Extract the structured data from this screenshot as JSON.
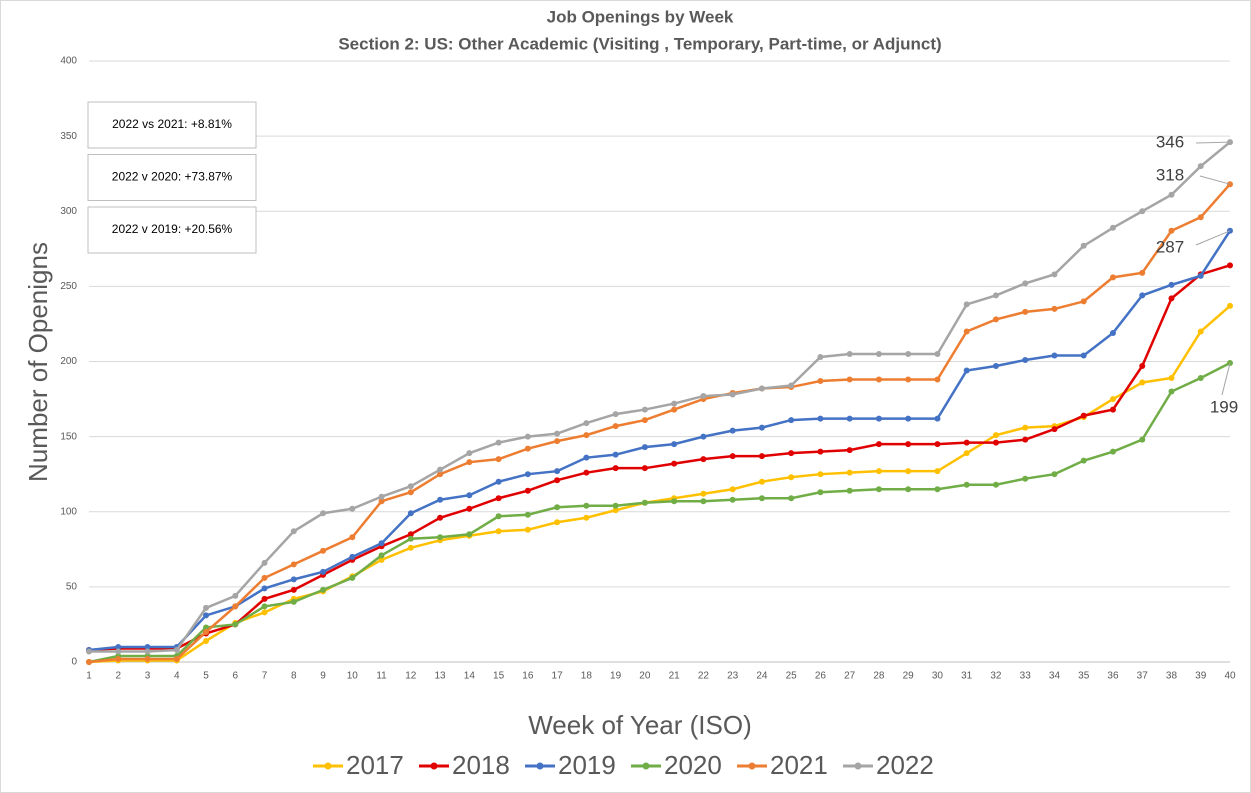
{
  "chart_data": {
    "type": "line",
    "title": "Job Openings by Week",
    "subtitle": "Section 2: US: Other Academic (Visiting , Temporary, Part-time, or Adjunct)",
    "x_label": "Week of Year (ISO)",
    "y_label": "Number of Openigns",
    "x": [
      1,
      2,
      3,
      4,
      5,
      6,
      7,
      8,
      9,
      10,
      11,
      12,
      13,
      14,
      15,
      16,
      17,
      18,
      19,
      20,
      21,
      22,
      23,
      24,
      25,
      26,
      27,
      28,
      29,
      30,
      31,
      32,
      33,
      34,
      35,
      36,
      37,
      38,
      39,
      40
    ],
    "xlim": [
      1,
      40
    ],
    "xticks": [
      1,
      2,
      3,
      4,
      5,
      6,
      7,
      8,
      9,
      10,
      11,
      12,
      13,
      14,
      15,
      16,
      17,
      18,
      19,
      20,
      21,
      22,
      23,
      24,
      25,
      26,
      27,
      28,
      29,
      30,
      31,
      32,
      33,
      34,
      35,
      36,
      37,
      38,
      39,
      40
    ],
    "ylim": [
      0,
      400
    ],
    "yticks": [
      0,
      50,
      100,
      150,
      200,
      250,
      300,
      350,
      400
    ],
    "grid": true,
    "legend": "bottom",
    "series": [
      {
        "name": "2017",
        "color": "#ffc000",
        "values": [
          0,
          1,
          1,
          1,
          14,
          26,
          33,
          42,
          47,
          57,
          68,
          76,
          81,
          84,
          87,
          88,
          93,
          96,
          101,
          106,
          109,
          112,
          115,
          120,
          123,
          125,
          126,
          127,
          127,
          127,
          139,
          151,
          156,
          157,
          163,
          175,
          186,
          189,
          220,
          237
        ]
      },
      {
        "name": "2018",
        "color": "#e00000",
        "values": [
          8,
          9,
          9,
          9,
          19,
          25,
          42,
          48,
          58,
          68,
          77,
          85,
          96,
          102,
          109,
          114,
          121,
          126,
          129,
          129,
          132,
          135,
          137,
          137,
          139,
          140,
          141,
          145,
          145,
          145,
          146,
          146,
          148,
          155,
          164,
          168,
          197,
          242,
          258,
          264
        ]
      },
      {
        "name": "2019",
        "color": "#4472c4",
        "values": [
          8,
          10,
          10,
          10,
          31,
          37,
          49,
          55,
          60,
          70,
          79,
          99,
          108,
          111,
          120,
          125,
          127,
          136,
          138,
          143,
          145,
          150,
          154,
          156,
          161,
          162,
          162,
          162,
          162,
          162,
          194,
          197,
          201,
          204,
          204,
          219,
          244,
          251,
          257,
          287
        ]
      },
      {
        "name": "2020",
        "color": "#70ad47",
        "values": [
          0,
          4,
          4,
          4,
          23,
          25,
          37,
          40,
          48,
          56,
          71,
          82,
          83,
          85,
          97,
          98,
          103,
          104,
          104,
          106,
          107,
          107,
          108,
          109,
          109,
          113,
          114,
          115,
          115,
          115,
          118,
          118,
          122,
          125,
          134,
          140,
          148,
          180,
          189,
          199
        ]
      },
      {
        "name": "2021",
        "color": "#ed7d31",
        "values": [
          0,
          2,
          2,
          2,
          20,
          37,
          56,
          65,
          74,
          83,
          107,
          113,
          125,
          133,
          135,
          142,
          147,
          151,
          157,
          161,
          168,
          175,
          179,
          182,
          183,
          187,
          188,
          188,
          188,
          188,
          220,
          228,
          233,
          235,
          240,
          256,
          259,
          287,
          296,
          318
        ]
      },
      {
        "name": "2022",
        "color": "#a5a5a5",
        "values": [
          7,
          7,
          7,
          8,
          36,
          44,
          66,
          87,
          99,
          102,
          110,
          117,
          128,
          139,
          146,
          150,
          152,
          159,
          165,
          168,
          172,
          177,
          178,
          182,
          184,
          203,
          205,
          205,
          205,
          205,
          238,
          244,
          252,
          258,
          277,
          289,
          300,
          311,
          330,
          346
        ]
      }
    ],
    "annotations": [
      "346",
      "318",
      "287",
      "199"
    ],
    "notes": [
      "2022 vs 2021: +8.81%",
      "2022 v 2020: +73.87%",
      "2022 v 2019: +20.56%"
    ]
  }
}
